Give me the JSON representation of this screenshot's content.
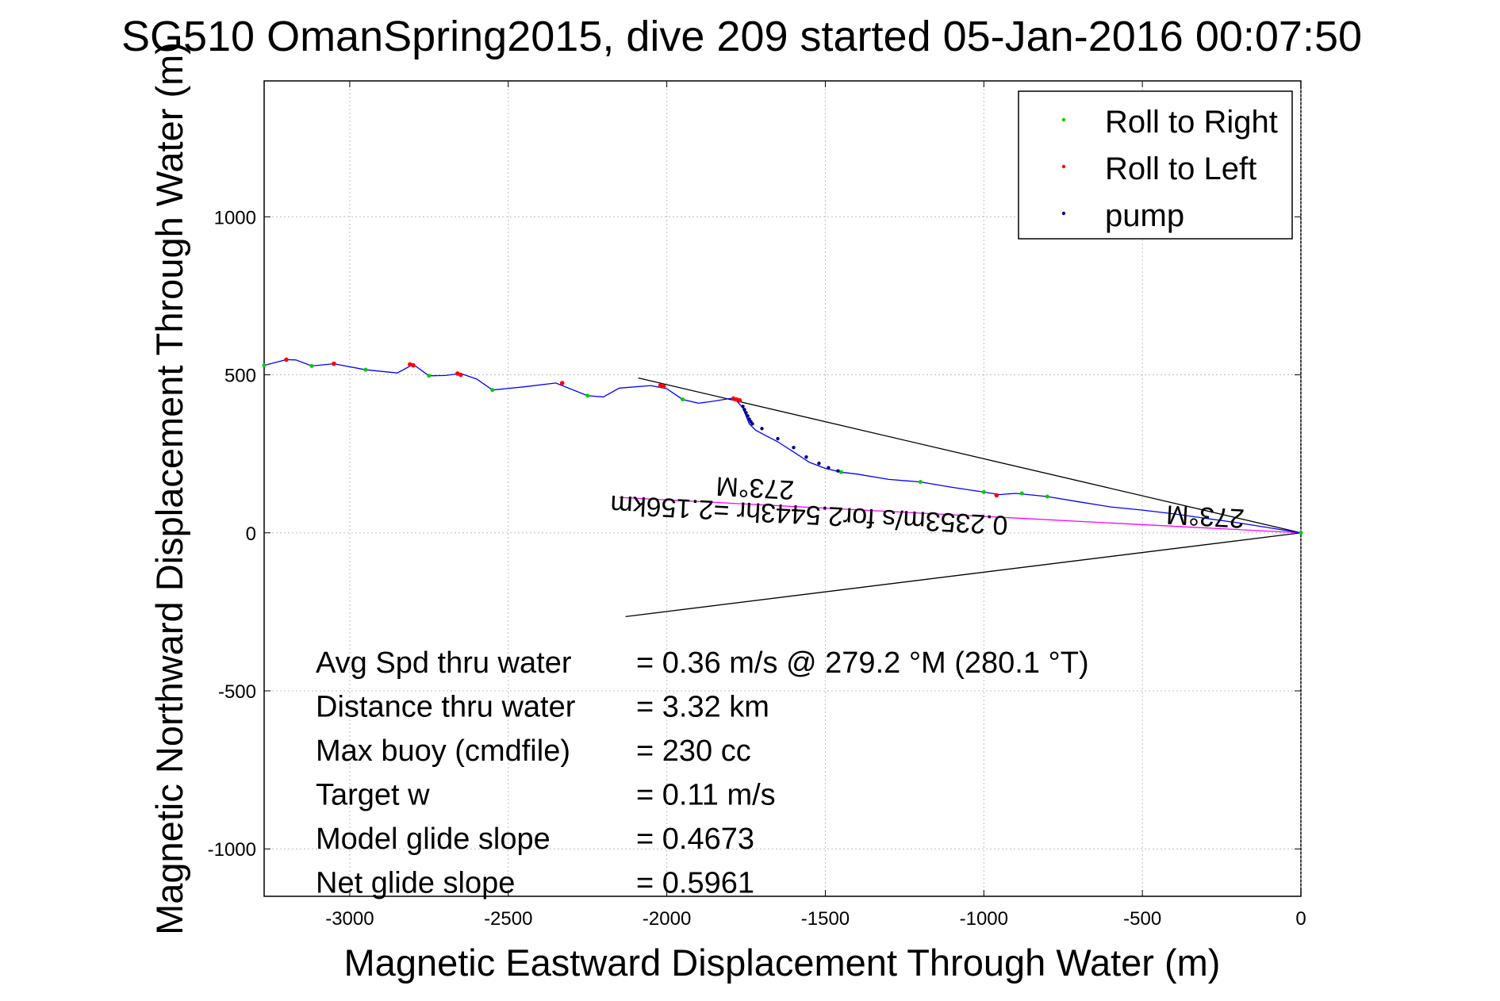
{
  "chart_data": {
    "type": "line",
    "title": "SG510 OmanSpring2015, dive 209 started 05-Jan-2016 00:07:50",
    "xlabel": "Magnetic Eastward Displacement Through Water (m)",
    "ylabel": "Magnetic Northward Displacement Through Water (m)",
    "xlim": [
      -3270,
      0
    ],
    "ylim": [
      -1150,
      1430
    ],
    "xticks": [
      -3000,
      -2500,
      -2000,
      -1500,
      -1000,
      -500,
      0
    ],
    "yticks": [
      -1000,
      -500,
      0,
      500,
      1000
    ],
    "grid": true,
    "legend_position": "top-right",
    "legend": [
      {
        "label": "Roll to Right",
        "color": "#00cc00"
      },
      {
        "label": "Roll to Left",
        "color": "#ff0000"
      },
      {
        "label": "pump",
        "color": "#000080"
      }
    ],
    "series": [
      {
        "name": "track",
        "color": "#0000ff",
        "x": [
          -3270,
          -3200,
          -3170,
          -3120,
          -3050,
          -2950,
          -2850,
          -2800,
          -2750,
          -2700,
          -2650,
          -2600,
          -2550,
          -2450,
          -2350,
          -2250,
          -2200,
          -2150,
          -2050,
          -2000,
          -1950,
          -1900,
          -1850,
          -1800,
          -1780,
          -1760,
          -1740,
          -1720,
          -1650,
          -1600,
          -1550,
          -1500,
          -1450,
          -1400,
          -1300,
          -1200,
          -1100,
          -1000,
          -950,
          -900,
          -800,
          -700,
          -600,
          -500,
          -400,
          -300,
          -200,
          -100,
          0
        ],
        "y": [
          530,
          548,
          547,
          528,
          535,
          516,
          506,
          533,
          497,
          498,
          504,
          487,
          452,
          462,
          474,
          434,
          430,
          458,
          466,
          456,
          422,
          410,
          417,
          425,
          418,
          395,
          345,
          325,
          288,
          256,
          223,
          204,
          192,
          186,
          169,
          161,
          144,
          129,
          121,
          125,
          115,
          98,
          82,
          72,
          60,
          46,
          32,
          16,
          0
        ]
      }
    ],
    "roll_right": {
      "x": [
        -3270,
        -3120,
        -2950,
        -2750,
        -2550,
        -2250,
        -1950,
        -1450,
        -1200,
        -1000,
        -880,
        -800,
        0
      ],
      "y": [
        530,
        528,
        516,
        497,
        452,
        434,
        422,
        192,
        161,
        129,
        125,
        115,
        0
      ]
    },
    "roll_left": {
      "x": [
        -3200,
        -3050,
        -2810,
        -2800,
        -2660,
        -2650,
        -2330,
        -2020,
        -2010,
        -1790,
        -1780,
        -1770,
        -960
      ],
      "y": [
        548,
        535,
        533,
        530,
        504,
        500,
        474,
        466,
        463,
        425,
        422,
        419,
        119
      ]
    },
    "pump": {
      "x": [
        -1760,
        -1755,
        -1750,
        -1745,
        -1740,
        -1735,
        -1730,
        -1700,
        -1650,
        -1600,
        -1560,
        -1520,
        -1490,
        -1460
      ],
      "y": [
        400,
        390,
        380,
        370,
        360,
        352,
        345,
        330,
        298,
        270,
        240,
        220,
        206,
        196
      ]
    },
    "heading_lines": [
      {
        "color": "#000000",
        "x": [
          -2090,
          0
        ],
        "y": [
          490,
          0
        ]
      },
      {
        "color": "#000000",
        "x": [
          -2130,
          0
        ],
        "y": [
          -265,
          0
        ]
      },
      {
        "color": "#ff00ff",
        "x": [
          -2150,
          0
        ],
        "y": [
          112,
          0
        ]
      }
    ],
    "annotations": [
      {
        "text": "273°M",
        "x": -1720,
        "y": 170,
        "rotated": true
      },
      {
        "text": "0.2353m/s for2.5443hr =2.156km",
        "x": -1550,
        "y": 85,
        "rotated": true
      },
      {
        "text": "273°M",
        "x": -300,
        "y": 80,
        "rotated": true
      }
    ],
    "stats": [
      {
        "label": "Avg Spd thru water",
        "value": "=  0.36 m/s @ 279.2 °M (280.1 °T)"
      },
      {
        "label": "Distance thru water",
        "value": "=  3.32 km"
      },
      {
        "label": "Max buoy (cmdfile)",
        "value": "= 230 cc"
      },
      {
        "label": "Target w",
        "value": "= 0.11 m/s"
      },
      {
        "label": "Model glide slope",
        "value": "= 0.4673"
      },
      {
        "label": "Net glide slope",
        "value": "= 0.5961"
      }
    ]
  }
}
